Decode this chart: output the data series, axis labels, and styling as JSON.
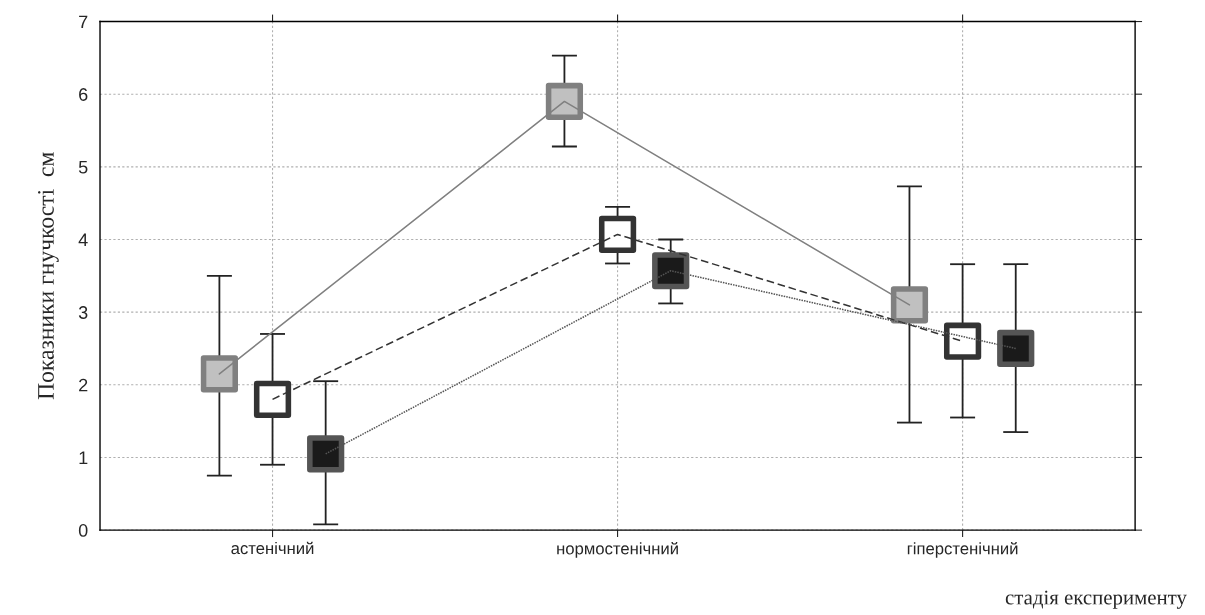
{
  "chart_data": {
    "type": "line",
    "ylabel": "Показники гнучкості  см",
    "xlabel": "стадія експерименту",
    "categories": [
      "астенічний",
      "нормостенічний",
      "гіперстенічний"
    ],
    "series": [
      {
        "color": "#808080",
        "colors": [
          "#c0c0c0",
          "#c0c0c0",
          "#c0c0c0"
        ],
        "line_style": "solid",
        "values": [
          2.15,
          5.9,
          3.1
        ],
        "errors": [
          [
            0.75,
            3.5
          ],
          [
            5.28,
            6.53
          ],
          [
            1.48,
            4.73
          ]
        ]
      },
      {
        "color": "#333333",
        "colors": [
          "#ffffff",
          "#ffffff",
          "#ffffff"
        ],
        "line_style": "dashed",
        "values": [
          1.8,
          4.07,
          2.6
        ],
        "errors": [
          [
            0.9,
            2.7
          ],
          [
            3.67,
            4.45
          ],
          [
            1.55,
            3.66
          ]
        ]
      },
      {
        "color": "#555555",
        "colors": [
          "#1a1a1a",
          "#1a1a1a",
          "#1a1a1a"
        ],
        "line_style": "dotted",
        "values": [
          1.05,
          3.57,
          2.5
        ],
        "errors": [
          [
            0.08,
            2.05
          ],
          [
            3.12,
            4.0
          ],
          [
            1.35,
            3.66
          ]
        ]
      }
    ],
    "marker": "square",
    "ylim": [
      0,
      7
    ],
    "yticks": [
      0,
      1,
      2,
      3,
      4,
      5,
      6,
      7
    ],
    "grid": true
  }
}
